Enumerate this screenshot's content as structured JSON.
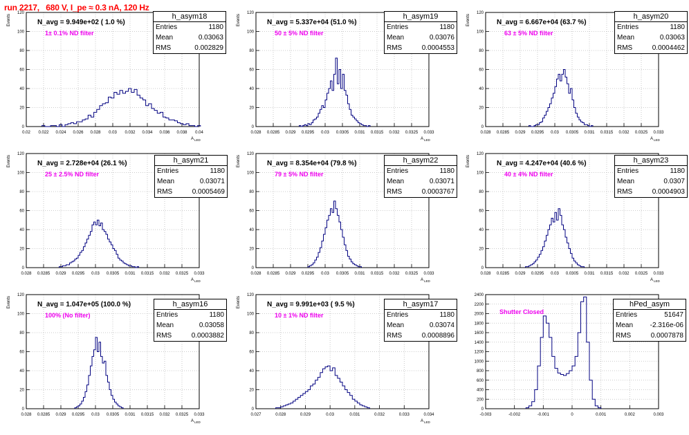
{
  "header": {
    "title": "run 2217,   680 V, I_pe ≈ 0.3 nA, 120 Hz"
  },
  "colors": {
    "title": "#ff0000",
    "filter_text": "#ee00ee",
    "histogram_line": "#000080",
    "axis": "#000000",
    "grid": "#bbbbbb"
  },
  "chart_data": [
    {
      "type": "histogram",
      "name": "h_asym18",
      "navg": "N_avg = 9.949e+02 ( 1.0 %)",
      "filter": "1± 0.1% ND filter",
      "ylabel": "Events",
      "xlabel": "A_LED",
      "grid": true,
      "xlim": [
        0.02,
        0.041
      ],
      "ylim": [
        0,
        120
      ],
      "x_ticks": [
        "0.02",
        "0.022",
        "0.024",
        "0.026",
        "0.028",
        "0.03",
        "0.032",
        "0.034",
        "0.036",
        "0.038",
        "0.04"
      ],
      "y_ticks": [
        "0",
        "20",
        "40",
        "60",
        "80",
        "100",
        "120"
      ],
      "stats": {
        "entries_label": "Entries",
        "entries": "1180",
        "mean_label": "Mean",
        "mean": "0.03063",
        "rms_label": "RMS",
        "rms": "0.002829"
      },
      "bins_x_start": 0.0219,
      "bins_width": 0.00035,
      "counts": [
        1,
        0,
        0,
        1,
        1,
        0,
        2,
        0,
        2,
        3,
        4,
        3,
        5,
        5,
        7,
        8,
        12,
        10,
        15,
        18,
        22,
        24,
        25,
        31,
        30,
        36,
        34,
        38,
        35,
        37,
        40,
        36,
        39,
        33,
        30,
        28,
        22,
        24,
        19,
        17,
        14,
        15,
        10,
        9,
        7,
        7,
        6,
        4,
        3,
        2,
        3,
        1,
        1,
        0,
        1
      ]
    },
    {
      "type": "histogram",
      "name": "h_asym19",
      "navg": "N_avg = 5.337e+04 (51.0 %)",
      "filter": "50 ± 5% ND filter",
      "ylabel": "Events",
      "xlabel": "A_LED",
      "grid": true,
      "xlim": [
        0.028,
        0.033
      ],
      "ylim": [
        0,
        120
      ],
      "x_ticks": [
        "0.028",
        "0.0285",
        "0.029",
        "0.0295",
        "0.03",
        "0.0305",
        "0.031",
        "0.0315",
        "0.032",
        "0.0325",
        "0.033"
      ],
      "y_ticks": [
        "0",
        "20",
        "40",
        "60",
        "80",
        "100",
        "120"
      ],
      "stats": {
        "entries_label": "Entries",
        "entries": "1180",
        "mean_label": "Mean",
        "mean": "0.03076",
        "rms_label": "RMS",
        "rms": "0.0004553"
      },
      "bins_x_start": 0.02925,
      "bins_width": 5e-05,
      "counts": [
        1,
        0,
        1,
        2,
        1,
        3,
        2,
        4,
        7,
        8,
        10,
        14,
        18,
        22,
        20,
        28,
        35,
        40,
        48,
        38,
        55,
        72,
        45,
        60,
        40,
        55,
        38,
        33,
        24,
        18,
        12,
        10,
        8,
        6,
        4,
        3,
        2,
        1,
        1,
        0,
        1
      ]
    },
    {
      "type": "histogram",
      "name": "h_asym20",
      "navg": "N_avg = 6.667e+04 (63.7 %)",
      "filter": "63 ± 5% ND filter",
      "ylabel": "Events",
      "xlabel": "A_LED",
      "grid": true,
      "xlim": [
        0.028,
        0.033
      ],
      "ylim": [
        0,
        120
      ],
      "x_ticks": [
        "0.028",
        "0.0285",
        "0.029",
        "0.0295",
        "0.03",
        "0.0305",
        "0.031",
        "0.0315",
        "0.032",
        "0.0325",
        "0.033"
      ],
      "y_ticks": [
        "0",
        "20",
        "40",
        "60",
        "80",
        "100",
        "120"
      ],
      "stats": {
        "entries_label": "Entries",
        "entries": "1180",
        "mean_label": "Mean",
        "mean": "0.03063",
        "rms_label": "RMS",
        "rms": "0.0004462"
      },
      "bins_x_start": 0.02925,
      "bins_width": 5e-05,
      "counts": [
        1,
        0,
        0,
        1,
        2,
        2,
        4,
        5,
        9,
        12,
        16,
        20,
        24,
        30,
        35,
        42,
        50,
        55,
        48,
        55,
        60,
        52,
        45,
        35,
        40,
        28,
        20,
        14,
        10,
        7,
        5,
        4,
        2,
        2,
        1,
        0,
        1
      ]
    },
    {
      "type": "histogram",
      "name": "h_asym21",
      "navg": "N_avg = 2.728e+04 (26.1 %)",
      "filter": "25 ± 2.5% ND filter",
      "ylabel": "Events",
      "xlabel": "A_LED",
      "grid": true,
      "xlim": [
        0.028,
        0.033
      ],
      "ylim": [
        0,
        120
      ],
      "x_ticks": [
        "0.028",
        "0.0285",
        "0.029",
        "0.0295",
        "0.03",
        "0.0305",
        "0.031",
        "0.0315",
        "0.032",
        "0.0325",
        "0.033"
      ],
      "y_ticks": [
        "0",
        "20",
        "40",
        "60",
        "80",
        "100",
        "120"
      ],
      "stats": {
        "entries_label": "Entries",
        "entries": "1180",
        "mean_label": "Mean",
        "mean": "0.03071",
        "rms_label": "RMS",
        "rms": "0.0005469"
      },
      "bins_x_start": 0.02895,
      "bins_width": 5e-05,
      "counts": [
        1,
        1,
        2,
        2,
        3,
        3,
        5,
        6,
        7,
        9,
        10,
        13,
        16,
        18,
        22,
        26,
        30,
        34,
        38,
        45,
        48,
        45,
        50,
        44,
        47,
        40,
        38,
        35,
        30,
        27,
        24,
        20,
        18,
        14,
        10,
        8,
        7,
        5,
        4,
        3,
        2,
        2,
        1,
        1,
        0,
        1
      ]
    },
    {
      "type": "histogram",
      "name": "h_asym22",
      "navg": "N_avg = 8.354e+04 (79.8 %)",
      "filter": "79 ± 5% ND filter",
      "ylabel": "Events",
      "xlabel": "A_LED",
      "grid": true,
      "xlim": [
        0.028,
        0.033
      ],
      "ylim": [
        0,
        120
      ],
      "x_ticks": [
        "0.028",
        "0.0285",
        "0.029",
        "0.0295",
        "0.03",
        "0.0305",
        "0.031",
        "0.0315",
        "0.032",
        "0.0325",
        "0.033"
      ],
      "y_ticks": [
        "0",
        "20",
        "40",
        "60",
        "80",
        "100",
        "120"
      ],
      "stats": {
        "entries_label": "Entries",
        "entries": "1180",
        "mean_label": "Mean",
        "mean": "0.03071",
        "rms_label": "RMS",
        "rms": "0.0003767"
      },
      "bins_x_start": 0.0295,
      "bins_width": 5e-05,
      "counts": [
        1,
        2,
        3,
        5,
        8,
        11,
        16,
        21,
        28,
        35,
        42,
        50,
        55,
        62,
        58,
        70,
        62,
        55,
        48,
        40,
        32,
        24,
        18,
        12,
        9,
        6,
        4,
        3,
        2,
        1,
        1
      ]
    },
    {
      "type": "histogram",
      "name": "h_asym23",
      "navg": "N_avg = 4.247e+04 (40.6 %)",
      "filter": "40 ± 4% ND filter",
      "ylabel": "Events",
      "xlabel": "A_LED",
      "grid": true,
      "xlim": [
        0.028,
        0.033
      ],
      "ylim": [
        0,
        120
      ],
      "x_ticks": [
        "0.028",
        "0.0285",
        "0.029",
        "0.0295",
        "0.03",
        "0.0305",
        "0.031",
        "0.0315",
        "0.032",
        "0.0325",
        "0.033"
      ],
      "y_ticks": [
        "0",
        "20",
        "40",
        "60",
        "80",
        "100",
        "120"
      ],
      "stats": {
        "entries_label": "Entries",
        "entries": "1180",
        "mean_label": "Mean",
        "mean": "0.0307",
        "rms_label": "RMS",
        "rms": "0.0004903"
      },
      "bins_x_start": 0.02915,
      "bins_width": 5e-05,
      "counts": [
        1,
        1,
        2,
        3,
        4,
        6,
        8,
        11,
        14,
        18,
        22,
        28,
        34,
        40,
        45,
        52,
        48,
        58,
        50,
        62,
        55,
        45,
        40,
        32,
        26,
        20,
        15,
        10,
        7,
        5,
        3,
        2,
        1,
        1
      ]
    },
    {
      "type": "histogram",
      "name": "h_asym16",
      "navg": "N_avg = 1.047e+05 (100.0 %)",
      "filter": "100% (No filter)",
      "ylabel": "Events",
      "xlabel": "A_LED",
      "grid": true,
      "xlim": [
        0.028,
        0.033
      ],
      "ylim": [
        0,
        120
      ],
      "x_ticks": [
        "0.028",
        "0.0285",
        "0.029",
        "0.0295",
        "0.03",
        "0.0305",
        "0.031",
        "0.0315",
        "0.032",
        "0.0325",
        "0.033"
      ],
      "y_ticks": [
        "0",
        "20",
        "40",
        "60",
        "80",
        "100",
        "120"
      ],
      "stats": {
        "entries_label": "Entries",
        "entries": "1180",
        "mean_label": "Mean",
        "mean": "0.03058",
        "rms_label": "RMS",
        "rms": "0.0003882"
      },
      "bins_x_start": 0.0294,
      "bins_width": 5e-05,
      "counts": [
        1,
        2,
        3,
        5,
        8,
        12,
        18,
        25,
        35,
        45,
        55,
        62,
        75,
        60,
        70,
        55,
        48,
        50,
        35,
        28,
        20,
        14,
        10,
        7,
        5,
        3,
        2,
        1
      ]
    },
    {
      "type": "histogram",
      "name": "h_asym17",
      "navg": "N_avg = 9.991e+03 ( 9.5 %)",
      "filter": "10 ± 1% ND filter",
      "ylabel": "Events",
      "xlabel": "A_LED",
      "grid": true,
      "xlim": [
        0.027,
        0.034
      ],
      "ylim": [
        0,
        120
      ],
      "x_ticks": [
        "0.027",
        "0.028",
        "0.029",
        "0.03",
        "0.031",
        "0.032",
        "0.033",
        "0.034"
      ],
      "y_ticks": [
        "0",
        "20",
        "40",
        "60",
        "80",
        "100",
        "120"
      ],
      "stats": {
        "entries_label": "Entries",
        "entries": "1180",
        "mean_label": "Mean",
        "mean": "0.03074",
        "rms_label": "RMS",
        "rms": "0.0008896"
      },
      "bins_x_start": 0.0278,
      "bins_width": 0.0001,
      "counts": [
        1,
        1,
        2,
        3,
        4,
        5,
        6,
        8,
        10,
        12,
        14,
        16,
        18,
        20,
        24,
        26,
        30,
        33,
        38,
        42,
        44,
        45,
        40,
        43,
        35,
        32,
        28,
        24,
        20,
        17,
        14,
        10,
        8,
        6,
        4,
        3,
        2,
        1
      ]
    },
    {
      "type": "histogram",
      "name": "hPed_asym",
      "navg": "",
      "filter": "Shutter Closed",
      "ylabel": "",
      "xlabel": "",
      "grid": true,
      "xlim": [
        -0.003,
        0.003
      ],
      "ylim": [
        0,
        2400
      ],
      "x_ticks": [
        "-0.003",
        "-0.002",
        "-0.001",
        "0",
        "0.001",
        "0.002",
        "0.003"
      ],
      "y_ticks": [
        "0",
        "200",
        "400",
        "600",
        "800",
        "1000",
        "1200",
        "1400",
        "1600",
        "1800",
        "2000",
        "2200",
        "2400"
      ],
      "stats": {
        "entries_label": "Entries",
        "entries": "51647",
        "mean_label": "Mean",
        "mean": "-2.316e-06",
        "rms_label": "RMS",
        "rms": "0.0007878"
      },
      "bins_x_start": -0.0016,
      "bins_width": 0.0001,
      "counts": [
        20,
        60,
        150,
        400,
        900,
        1500,
        1950,
        1800,
        1500,
        1100,
        850,
        750,
        720,
        700,
        740,
        800,
        900,
        1100,
        1600,
        2250,
        2350,
        1400,
        600,
        200,
        60,
        20
      ]
    }
  ]
}
